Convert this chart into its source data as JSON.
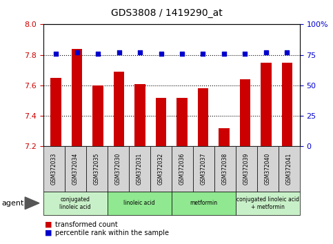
{
  "title": "GDS3808 / 1419290_at",
  "samples": [
    "GSM372033",
    "GSM372034",
    "GSM372035",
    "GSM372030",
    "GSM372031",
    "GSM372032",
    "GSM372036",
    "GSM372037",
    "GSM372038",
    "GSM372039",
    "GSM372040",
    "GSM372041"
  ],
  "bar_values": [
    7.65,
    7.84,
    7.6,
    7.69,
    7.61,
    7.52,
    7.52,
    7.58,
    7.32,
    7.64,
    7.75,
    7.75
  ],
  "dot_values": [
    76,
    77,
    76,
    77,
    77,
    76,
    76,
    76,
    76,
    76,
    77,
    77
  ],
  "ylim_left": [
    7.2,
    8.0
  ],
  "ylim_right": [
    0,
    100
  ],
  "yticks_left": [
    7.2,
    7.4,
    7.6,
    7.8,
    8.0
  ],
  "yticks_right": [
    0,
    25,
    50,
    75,
    100
  ],
  "ytick_labels_right": [
    "0",
    "25",
    "50",
    "75",
    "100%"
  ],
  "bar_color": "#cc0000",
  "dot_color": "#0000cc",
  "agent_groups": [
    {
      "label": "conjugated\nlinoleic acid",
      "start": 0,
      "end": 3,
      "color": "#c8f0c8"
    },
    {
      "label": "linoleic acid",
      "start": 3,
      "end": 6,
      "color": "#90e890"
    },
    {
      "label": "metformin",
      "start": 6,
      "end": 9,
      "color": "#90e890"
    },
    {
      "label": "conjugated linoleic acid\n+ metformin",
      "start": 9,
      "end": 12,
      "color": "#c8f0c8"
    }
  ],
  "legend_items": [
    {
      "label": "transformed count",
      "color": "#cc0000"
    },
    {
      "label": "percentile rank within the sample",
      "color": "#0000cc"
    }
  ],
  "agent_label": "agent",
  "bar_width": 0.5,
  "tick_label_color_left": "#cc0000",
  "tick_label_color_right": "#0000cc",
  "grid_yticks": [
    7.4,
    7.6,
    7.8
  ]
}
